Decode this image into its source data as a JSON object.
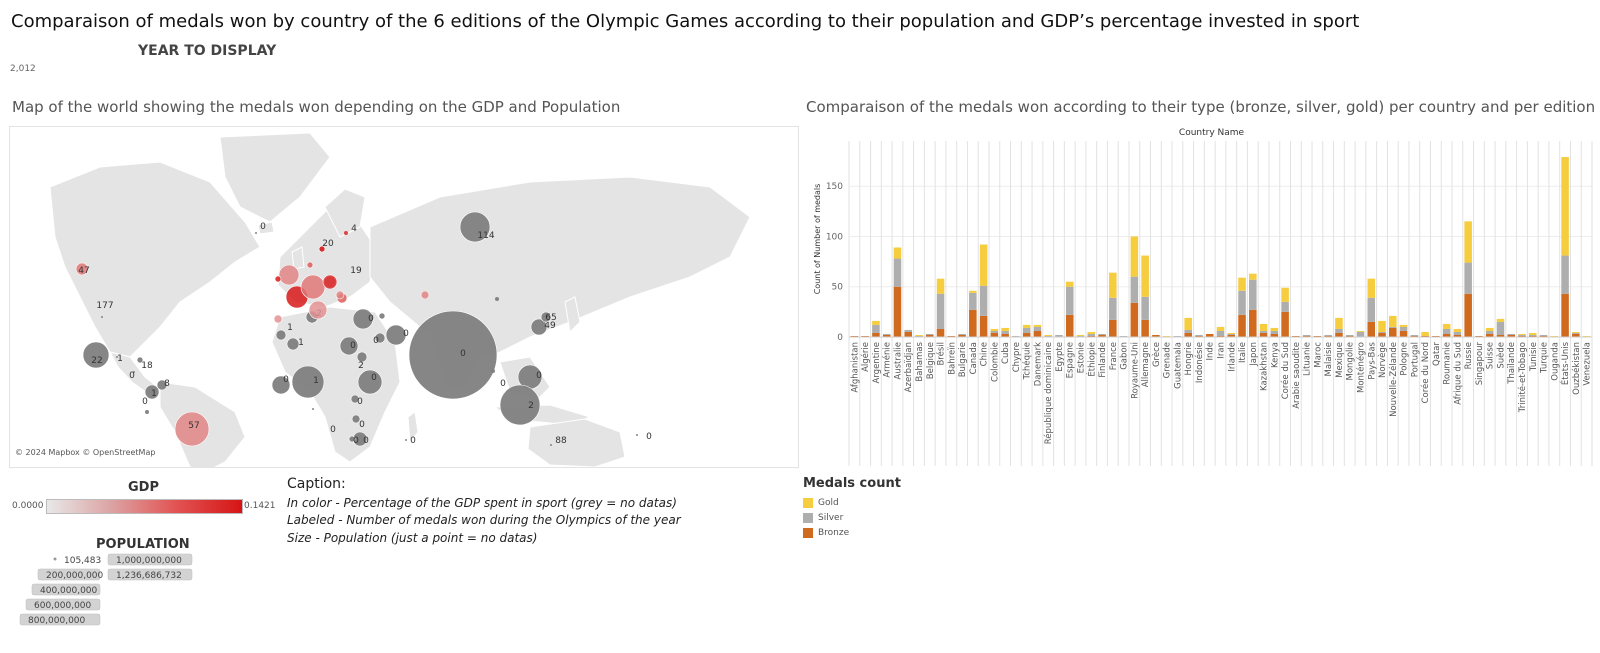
{
  "page": {
    "title": "Comparaison of medals won by country of the 6 editions of the Olympic Games according to their population and GDP’s percentage invested in sport",
    "year_label": "YEAR TO DISPLAY",
    "year_value": "2,012"
  },
  "map": {
    "title": "Map of the world showing the medals won depending on the GDP and Population",
    "attribution": "© 2024 Mapbox © OpenStreetMap",
    "bubbles": [
      {
        "label": "114",
        "size": 15,
        "gdp": null,
        "lx": 485,
        "ly": 235
      },
      {
        "label": "177",
        "size": 1,
        "gdp": null,
        "lx": 104,
        "ly": 305
      },
      {
        "label": "47",
        "size": 6,
        "gdp": 0.06,
        "lx": 83,
        "ly": 270
      },
      {
        "label": "0",
        "size": 1,
        "gdp": null,
        "lx": 262,
        "ly": 226
      },
      {
        "label": "4",
        "size": 2,
        "gdp": 0.12,
        "lx": 353,
        "ly": 228
      },
      {
        "label": "20",
        "size": 3,
        "gdp": 0.14,
        "lx": 327,
        "ly": 243
      },
      {
        "label": "19",
        "size": 6,
        "gdp": 0.1,
        "lx": 355,
        "ly": 270
      },
      {
        "label": "22",
        "size": 13,
        "gdp": null,
        "lx": 96,
        "ly": 360
      },
      {
        "label": "1",
        "size": 1,
        "gdp": null,
        "lx": 119,
        "ly": 358
      },
      {
        "label": "18",
        "size": 3,
        "gdp": null,
        "lx": 146,
        "ly": 365
      },
      {
        "label": "0",
        "size": 1,
        "gdp": null,
        "lx": 131,
        "ly": 375
      },
      {
        "label": "8",
        "size": 5,
        "gdp": null,
        "lx": 166,
        "ly": 383
      },
      {
        "label": "1",
        "size": 7,
        "gdp": null,
        "lx": 153,
        "ly": 393
      },
      {
        "label": "0",
        "size": 2,
        "gdp": null,
        "lx": 144,
        "ly": 401
      },
      {
        "label": "57",
        "size": 17,
        "gdp": 0.05,
        "lx": 193,
        "ly": 425
      },
      {
        "label": "1",
        "size": 5,
        "gdp": null,
        "lx": 289,
        "ly": 327
      },
      {
        "label": "1",
        "size": 6,
        "gdp": null,
        "lx": 300,
        "ly": 342
      },
      {
        "label": "0",
        "size": 9,
        "gdp": null,
        "lx": 285,
        "ly": 379
      },
      {
        "label": "1",
        "size": 16,
        "gdp": null,
        "lx": 315,
        "ly": 380
      },
      {
        "label": "0",
        "size": 1,
        "gdp": null,
        "lx": 332,
        "ly": 429
      },
      {
        "label": "2",
        "size": 6,
        "gdp": null,
        "lx": 318,
        "ly": 313
      },
      {
        "label": "0",
        "size": 10,
        "gdp": null,
        "lx": 370,
        "ly": 318
      },
      {
        "label": "0",
        "size": 5,
        "gdp": null,
        "lx": 375,
        "ly": 340
      },
      {
        "label": "0",
        "size": 10,
        "gdp": null,
        "lx": 405,
        "ly": 333
      },
      {
        "label": "0",
        "size": 9,
        "gdp": null,
        "lx": 352,
        "ly": 345
      },
      {
        "label": "2",
        "size": 5,
        "gdp": null,
        "lx": 360,
        "ly": 365
      },
      {
        "label": "0",
        "size": 12,
        "gdp": null,
        "lx": 373,
        "ly": 377
      },
      {
        "label": "0",
        "size": 4,
        "gdp": null,
        "lx": 359,
        "ly": 401
      },
      {
        "label": "0",
        "size": 4,
        "gdp": null,
        "lx": 361,
        "ly": 424
      },
      {
        "label": "0",
        "size": 7,
        "gdp": null,
        "lx": 365,
        "ly": 440
      },
      {
        "label": "0",
        "size": 3,
        "gdp": null,
        "lx": 355,
        "ly": 440
      },
      {
        "label": "0",
        "size": 1,
        "gdp": null,
        "lx": 412,
        "ly": 440
      },
      {
        "label": "0",
        "size": 44,
        "gdp": null,
        "lx": 462,
        "ly": 353
      },
      {
        "label": "0",
        "size": 12,
        "gdp": null,
        "lx": 538,
        "ly": 375
      },
      {
        "label": "2",
        "size": 20,
        "gdp": null,
        "lx": 530,
        "ly": 405
      },
      {
        "label": "49",
        "size": 8,
        "gdp": null,
        "lx": 549,
        "ly": 325
      },
      {
        "label": "65",
        "size": 5,
        "gdp": null,
        "lx": 550,
        "ly": 317
      },
      {
        "label": "0",
        "size": 2,
        "gdp": null,
        "lx": 502,
        "ly": 383
      },
      {
        "label": "88",
        "size": 1,
        "gdp": null,
        "lx": 560,
        "ly": 440
      },
      {
        "label": "0",
        "size": 1,
        "gdp": null,
        "lx": 648,
        "ly": 436
      },
      {
        "label": "",
        "size": 11,
        "gdp": 0.13,
        "lx": 302,
        "ly": 298
      },
      {
        "label": "",
        "size": 10,
        "gdp": 0.05,
        "lx": 294,
        "ly": 275
      },
      {
        "label": "",
        "size": 12,
        "gdp": 0.06,
        "lx": 319,
        "ly": 287
      },
      {
        "label": "",
        "size": 9,
        "gdp": 0.04,
        "lx": 323,
        "ly": 308
      },
      {
        "label": "",
        "size": 7,
        "gdp": 0.11,
        "lx": 335,
        "ly": 282
      },
      {
        "label": "",
        "size": 5,
        "gdp": 0.08,
        "lx": 346,
        "ly": 298
      },
      {
        "label": "",
        "size": 4,
        "gdp": 0.05,
        "lx": 433,
        "ly": 294
      },
      {
        "label": "",
        "size": 4,
        "gdp": 0.04,
        "lx": 280,
        "ly": 318
      },
      {
        "label": "",
        "size": 3,
        "gdp": 0.13,
        "lx": 282,
        "ly": 278
      },
      {
        "label": "",
        "size": 3,
        "gdp": 0.08,
        "lx": 313,
        "ly": 268
      },
      {
        "label": "",
        "size": 3,
        "gdp": null,
        "lx": 390,
        "ly": 315
      },
      {
        "label": "",
        "size": 2,
        "gdp": null,
        "lx": 505,
        "ly": 300
      },
      {
        "label": "",
        "size": 4,
        "gdp": 0.05,
        "lx": 351,
        "ly": 300
      }
    ]
  },
  "gdp_legend": {
    "title": "GDP",
    "min_label": "0.0000",
    "max_label": "0.1421"
  },
  "population_legend": {
    "title": "POPULATION",
    "items": [
      {
        "label": "105,483",
        "value": 105483
      },
      {
        "label": "200,000,000",
        "value": 200000000
      },
      {
        "label": "400,000,000",
        "value": 400000000
      },
      {
        "label": "600,000,000",
        "value": 600000000
      },
      {
        "label": "800,000,000",
        "value": 800000000
      },
      {
        "label": "1,000,000,000",
        "value": 1000000000
      },
      {
        "label": "1,236,686,732",
        "value": 1236686732
      }
    ]
  },
  "caption": {
    "heading": "Caption:",
    "line1": "In color - Percentage of the GDP spent in sport (grey = no datas)",
    "line2": "Labeled - Number of medals won during the Olympics of the year",
    "line3": "Size - Population (just a point = no datas)"
  },
  "bar_section": {
    "title": "Comparaison of the medals won according to their type (bronze, silver, gold) per country and per edition"
  },
  "medals_legend": {
    "title": "Medals count",
    "items": [
      {
        "label": "Gold",
        "color": "#f5cd3f"
      },
      {
        "label": "Silver",
        "color": "#aeaeae"
      },
      {
        "label": "Bronze",
        "color": "#cf6a1e"
      }
    ]
  },
  "chart_data": {
    "type": "bar",
    "stacked": true,
    "title": "Country Name",
    "ylabel": "Count of Number of medals",
    "ylim": [
      0,
      185
    ],
    "yticks": [
      0,
      50,
      100,
      150
    ],
    "categories": [
      "Afghanistan",
      "Algérie",
      "Argentine",
      "Arménie",
      "Australie",
      "Azerbaïdjan",
      "Bahamas",
      "Belgique",
      "Brésil",
      "Bahreïn",
      "Bulgarie",
      "Canada",
      "Chine",
      "Colombie",
      "Cuba",
      "Chypre",
      "Tchéquie",
      "Danemark",
      "République dominicaine",
      "Egypte",
      "Espagne",
      "Estonie",
      "Éthiopie",
      "Finlande",
      "France",
      "Gabon",
      "Royaume-Uni",
      "Allemagne",
      "Grèce",
      "Grenade",
      "Guatemala",
      "Hongrie",
      "Indonésie",
      "Inde",
      "Iran",
      "Irlande",
      "Italie",
      "Japon",
      "Kazakhstan",
      "Kenya",
      "Corée du Sud",
      "Arabie saoudite",
      "Lituanie",
      "Maroc",
      "Malaisie",
      "Mexique",
      "Mongolie",
      "Monténégro",
      "Pays-Bas",
      "Norvège",
      "Nouvelle-Zélande",
      "Pologne",
      "Portugal",
      "Corée du Nord",
      "Qatar",
      "Roumanie",
      "Afrique du Sud",
      "Russie",
      "Singapour",
      "Suisse",
      "Suède",
      "Thaïlande",
      "Trinité-et-Tobago",
      "Tunisie",
      "Turquie",
      "Ouganda",
      "États-Unis",
      "Ouzbékistan",
      "Venezuela"
    ],
    "series": [
      {
        "name": "Bronze",
        "values": [
          1,
          1,
          4,
          2,
          50,
          5,
          0,
          2,
          8,
          1,
          2,
          27,
          21,
          4,
          3,
          0,
          4,
          6,
          0,
          0,
          22,
          0,
          1,
          2,
          17,
          0,
          34,
          17,
          2,
          0,
          0,
          4,
          1,
          3,
          1,
          2,
          22,
          27,
          4,
          3,
          25,
          1,
          1,
          1,
          1,
          4,
          1,
          0,
          15,
          4,
          9,
          6,
          1,
          1,
          1,
          3,
          2,
          43,
          1,
          3,
          2,
          2,
          1,
          1,
          1,
          0,
          43,
          3,
          0
        ]
      },
      {
        "name": "Silver",
        "values": [
          0,
          0,
          8,
          1,
          28,
          2,
          1,
          1,
          35,
          0,
          1,
          17,
          30,
          2,
          3,
          1,
          5,
          4,
          1,
          2,
          28,
          1,
          2,
          1,
          22,
          1,
          26,
          23,
          0,
          0,
          1,
          3,
          1,
          0,
          5,
          1,
          24,
          30,
          2,
          3,
          10,
          0,
          1,
          0,
          1,
          4,
          1,
          5,
          24,
          1,
          1,
          4,
          1,
          0,
          0,
          5,
          3,
          31,
          0,
          3,
          13,
          1,
          1,
          1,
          1,
          0,
          38,
          1,
          0
        ]
      },
      {
        "name": "Gold",
        "values": [
          0,
          0,
          4,
          0,
          11,
          0,
          1,
          0,
          15,
          0,
          0,
          2,
          41,
          2,
          3,
          0,
          3,
          2,
          1,
          0,
          5,
          1,
          2,
          0,
          25,
          0,
          40,
          41,
          0,
          1,
          0,
          12,
          0,
          0,
          4,
          1,
          13,
          6,
          7,
          3,
          14,
          0,
          0,
          0,
          0,
          11,
          0,
          1,
          19,
          11,
          11,
          2,
          0,
          4,
          0,
          5,
          3,
          41,
          0,
          3,
          3,
          0,
          1,
          2,
          0,
          1,
          98,
          1,
          1
        ]
      }
    ],
    "legend_position": "bottom-left",
    "grid": true
  }
}
